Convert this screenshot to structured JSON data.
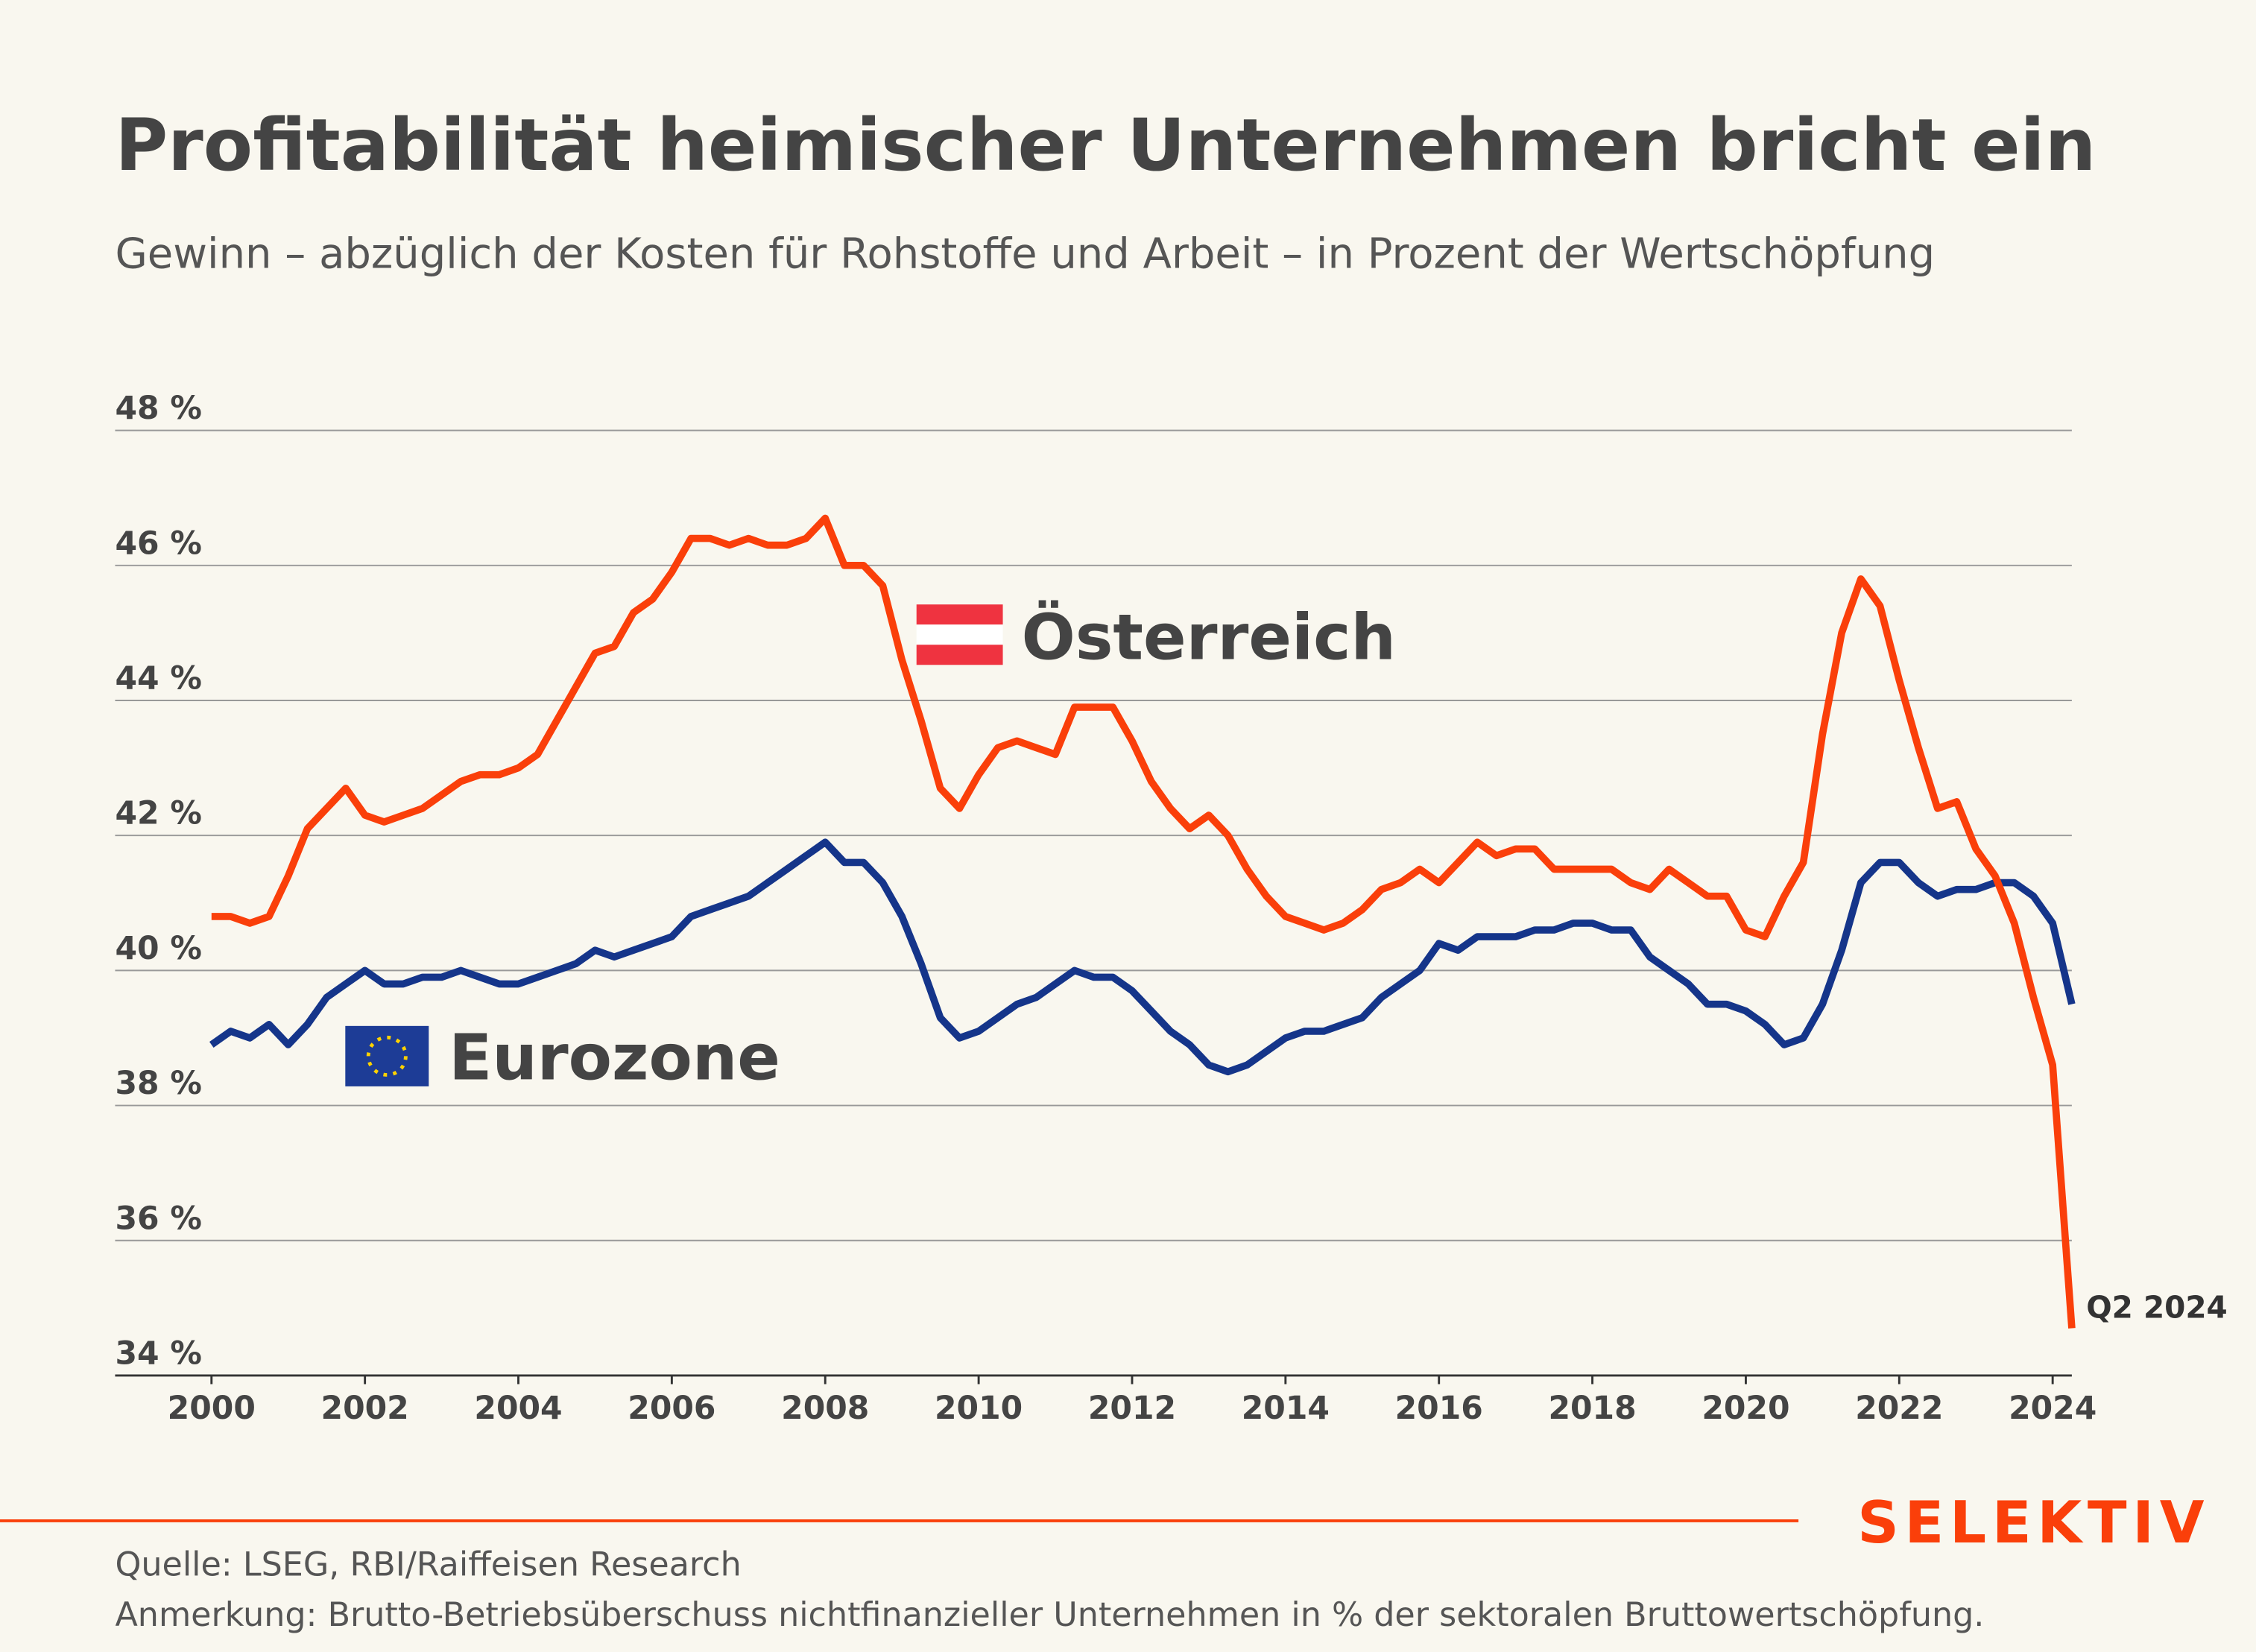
{
  "chart_data": {
    "type": "line",
    "title": "Profitabilität heimischer Unternehmen bricht ein",
    "subtitle": "Gewinn – abzüglich der Kosten für Rohstoffe und Arbeit – in Prozent der Wertschöpfung",
    "annotation": "Q2 2024",
    "brand": "SELEKTIV",
    "source": "Quelle: LSEG, RBI/Raiffeisen Research",
    "note": "Anmerkung: Brutto-Betriebsüberschuss nichtfinanzieller Unternehmen in % der sektoralen Bruttowertschöpfung.",
    "x": [
      2000,
      2000.25,
      2000.5,
      2000.75,
      2001,
      2001.25,
      2001.5,
      2001.75,
      2002,
      2002.25,
      2002.5,
      2002.75,
      2003,
      2003.25,
      2003.5,
      2003.75,
      2004,
      2004.25,
      2004.5,
      2004.75,
      2005,
      2005.25,
      2005.5,
      2005.75,
      2006,
      2006.25,
      2006.5,
      2006.75,
      2007,
      2007.25,
      2007.5,
      2007.75,
      2008,
      2008.25,
      2008.5,
      2008.75,
      2009,
      2009.25,
      2009.5,
      2009.75,
      2010,
      2010.25,
      2010.5,
      2010.75,
      2011,
      2011.25,
      2011.5,
      2011.75,
      2012,
      2012.25,
      2012.5,
      2012.75,
      2013,
      2013.25,
      2013.5,
      2013.75,
      2014,
      2014.25,
      2014.5,
      2014.75,
      2015,
      2015.25,
      2015.5,
      2015.75,
      2016,
      2016.25,
      2016.5,
      2016.75,
      2017,
      2017.25,
      2017.5,
      2017.75,
      2018,
      2018.25,
      2018.5,
      2018.75,
      2019,
      2019.25,
      2019.5,
      2019.75,
      2020,
      2020.25,
      2020.5,
      2020.75,
      2021,
      2021.25,
      2021.5,
      2021.75,
      2022,
      2022.25,
      2022.5,
      2022.75,
      2023,
      2023.25,
      2023.5,
      2023.75,
      2024,
      2024.25
    ],
    "series": [
      {
        "name": "Österreich",
        "color": "#fa3f0a",
        "values": [
          40.8,
          40.8,
          40.7,
          40.8,
          41.4,
          42.1,
          42.4,
          42.7,
          42.3,
          42.2,
          42.3,
          42.4,
          42.6,
          42.8,
          42.9,
          42.9,
          43.0,
          43.2,
          43.7,
          44.2,
          44.7,
          44.8,
          45.3,
          45.5,
          45.9,
          46.4,
          46.4,
          46.3,
          46.4,
          46.3,
          46.3,
          46.4,
          46.7,
          46.0,
          46.0,
          45.7,
          44.6,
          43.7,
          42.7,
          42.4,
          42.9,
          43.3,
          43.4,
          43.3,
          43.2,
          43.9,
          43.9,
          43.9,
          43.4,
          42.8,
          42.4,
          42.1,
          42.3,
          42.0,
          41.5,
          41.1,
          40.8,
          40.7,
          40.6,
          40.7,
          40.9,
          41.2,
          41.3,
          41.5,
          41.3,
          41.6,
          41.9,
          41.7,
          41.8,
          41.8,
          41.5,
          41.5,
          41.5,
          41.5,
          41.3,
          41.2,
          41.5,
          41.3,
          41.1,
          41.1,
          40.6,
          40.5,
          41.1,
          41.6,
          43.5,
          45.0,
          45.8,
          45.4,
          44.3,
          43.3,
          42.4,
          42.5,
          41.8,
          41.4,
          40.7,
          39.6,
          38.6,
          34.7
        ]
      },
      {
        "name": "Eurozone",
        "color": "#15358a",
        "values": [
          38.9,
          39.1,
          39.0,
          39.2,
          38.9,
          39.2,
          39.6,
          39.8,
          40.0,
          39.8,
          39.8,
          39.9,
          39.9,
          40.0,
          39.9,
          39.8,
          39.8,
          39.9,
          40.0,
          40.1,
          40.3,
          40.2,
          40.3,
          40.4,
          40.5,
          40.8,
          40.9,
          41.0,
          41.1,
          41.3,
          41.5,
          41.7,
          41.9,
          41.6,
          41.6,
          41.3,
          40.8,
          40.1,
          39.3,
          39.0,
          39.1,
          39.3,
          39.5,
          39.6,
          39.8,
          40.0,
          39.9,
          39.9,
          39.7,
          39.4,
          39.1,
          38.9,
          38.6,
          38.5,
          38.6,
          38.8,
          39.0,
          39.1,
          39.1,
          39.2,
          39.3,
          39.6,
          39.8,
          40.0,
          40.4,
          40.3,
          40.5,
          40.5,
          40.5,
          40.6,
          40.6,
          40.7,
          40.7,
          40.6,
          40.6,
          40.2,
          40.0,
          39.8,
          39.5,
          39.5,
          39.4,
          39.2,
          38.9,
          39.0,
          39.5,
          40.3,
          41.3,
          41.6,
          41.6,
          41.3,
          41.1,
          41.2,
          41.2,
          41.3,
          41.3,
          41.1,
          40.7,
          39.5
        ]
      }
    ],
    "xlim": [
      2000,
      2024.25
    ],
    "xticks": [
      2000,
      2002,
      2004,
      2006,
      2008,
      2010,
      2012,
      2014,
      2016,
      2018,
      2020,
      2022,
      2024
    ],
    "ylim": [
      34,
      48
    ],
    "yticks": [
      {
        "value": 34,
        "label": "34 %"
      },
      {
        "value": 36,
        "label": "36 %"
      },
      {
        "value": 38,
        "label": "38 %"
      },
      {
        "value": 40,
        "label": "40 %"
      },
      {
        "value": 42,
        "label": "42 %"
      },
      {
        "value": 44,
        "label": "44 %"
      },
      {
        "value": 46,
        "label": "46 %"
      },
      {
        "value": 48,
        "label": "48 %"
      }
    ],
    "grid": true
  }
}
